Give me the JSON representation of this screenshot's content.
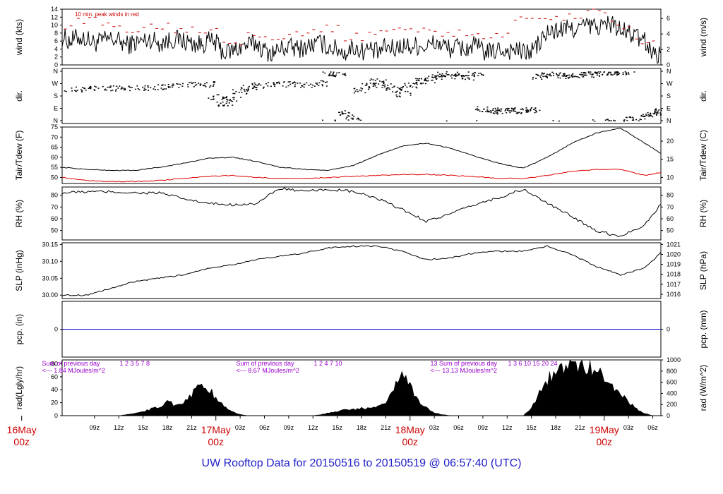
{
  "title": "UW Rooftop Data for 20150516  to  20150519 @ 06:57:40  (UTC)",
  "colors": {
    "series": "#000000",
    "peak": "#cc0000",
    "dewpoint": "#dd0000",
    "precip": "#0000cc",
    "day_label": "#cc0000",
    "notes": "#9900cc",
    "title": "#2222cc"
  },
  "time_axis": {
    "start_hour": 5,
    "end_hour": 79,
    "ticks": [
      {
        "hour": 9,
        "label": "09z"
      },
      {
        "hour": 12,
        "label": "12z"
      },
      {
        "hour": 15,
        "label": "15z"
      },
      {
        "hour": 18,
        "label": "18z"
      },
      {
        "hour": 21,
        "label": "21z"
      },
      {
        "hour": 27,
        "label": "03z"
      },
      {
        "hour": 30,
        "label": "06z"
      },
      {
        "hour": 33,
        "label": "09z"
      },
      {
        "hour": 36,
        "label": "12z"
      },
      {
        "hour": 39,
        "label": "15z"
      },
      {
        "hour": 42,
        "label": "18z"
      },
      {
        "hour": 45,
        "label": "21z"
      },
      {
        "hour": 51,
        "label": "03z"
      },
      {
        "hour": 54,
        "label": "06z"
      },
      {
        "hour": 57,
        "label": "09z"
      },
      {
        "hour": 60,
        "label": "12z"
      },
      {
        "hour": 63,
        "label": "15z"
      },
      {
        "hour": 66,
        "label": "18z"
      },
      {
        "hour": 69,
        "label": "21z"
      },
      {
        "hour": 75,
        "label": "03z"
      },
      {
        "hour": 78,
        "label": "06z"
      }
    ],
    "days": [
      {
        "hour": 0,
        "date": "16May",
        "z": "00z"
      },
      {
        "hour": 24,
        "date": "17May",
        "z": "00z"
      },
      {
        "hour": 48,
        "date": "18May",
        "z": "00z"
      },
      {
        "hour": 72,
        "date": "19May",
        "z": "00z"
      }
    ]
  },
  "chart_data": [
    {
      "id": "wind",
      "type": "line",
      "ylabel": "wind (kts)",
      "ylabel2": "wind (m/s)",
      "ylim": [
        0,
        14
      ],
      "yticks": [
        "0",
        "2",
        "4",
        "6",
        "8",
        "10",
        "12",
        "14"
      ],
      "yticks2": [
        "0",
        "2",
        "4",
        "6"
      ],
      "annotation": "10 min. peak winds in red",
      "series": [
        {
          "x": [
            5,
            6,
            7,
            8,
            9,
            10,
            11,
            12,
            13,
            14,
            15,
            16,
            17,
            18,
            19,
            20,
            21,
            22,
            23,
            24,
            25,
            26,
            27,
            28,
            29,
            30,
            31,
            32,
            33,
            34,
            35,
            36,
            37,
            38,
            39,
            40,
            41,
            42,
            43,
            44,
            45,
            46,
            47,
            48,
            49,
            50,
            51,
            52,
            53,
            54,
            55,
            56,
            57,
            58,
            59,
            60,
            61,
            62,
            63,
            64,
            65,
            66,
            67,
            68,
            69,
            70,
            71,
            72,
            73,
            74,
            75,
            76,
            77,
            78,
            79
          ],
          "values": [
            7,
            6,
            7,
            6.5,
            5.5,
            6,
            6.5,
            6,
            5,
            5.5,
            6,
            6.5,
            5.5,
            6,
            6.5,
            6,
            5.5,
            5,
            6,
            5.5,
            3,
            3.5,
            4.5,
            5,
            5.5,
            3.5,
            3,
            4,
            4.5,
            4,
            4.5,
            5,
            5.5,
            4.5,
            4,
            3,
            4.5,
            3.5,
            4,
            3,
            4.5,
            4,
            5,
            4.5,
            5,
            4.5,
            5.5,
            5,
            4,
            4.5,
            4,
            5,
            3.5,
            3,
            4,
            3.5,
            4,
            3,
            3.5,
            5.5,
            8,
            8.5,
            9,
            9,
            9.5,
            10,
            9.5,
            10,
            10.5,
            8.5,
            8,
            7,
            6,
            3,
            2.5
          ]
        },
        {
          "name": "10 min. peak winds in red",
          "x": [
            5,
            8,
            11,
            14,
            17,
            20,
            23,
            26,
            29,
            32,
            35,
            38,
            41,
            44,
            47,
            50,
            53,
            56,
            59,
            62,
            65,
            68,
            71,
            74,
            77
          ],
          "values": [
            10,
            11,
            10,
            9,
            10,
            9,
            9,
            6,
            8,
            7,
            8,
            9,
            7,
            8,
            9,
            9,
            8,
            7,
            7,
            12,
            12,
            12,
            14,
            10,
            6
          ]
        }
      ]
    },
    {
      "id": "dir",
      "type": "scatter",
      "ylabel": "dir.",
      "ylabel2": "dir.",
      "ylim": [
        0,
        360
      ],
      "yticks": [
        "N",
        "W",
        "S",
        "E",
        "N"
      ],
      "yticks2": [
        "N",
        "W",
        "S",
        "E",
        "N"
      ],
      "series": [
        {
          "x": [
            5,
            7,
            9,
            11,
            13,
            15,
            17,
            19,
            21,
            23,
            24,
            25,
            26,
            27,
            28,
            29,
            31,
            33,
            35,
            37,
            38,
            39,
            40,
            41,
            42,
            43,
            44,
            45,
            46,
            47,
            48,
            49,
            50,
            51,
            52,
            53,
            54,
            55,
            56,
            57,
            58,
            59,
            60,
            61,
            62,
            63,
            64,
            65,
            66,
            67,
            68,
            69,
            70,
            71,
            72,
            73,
            74,
            75,
            76,
            77,
            78,
            79
          ],
          "values": [
            218,
            230,
            238,
            240,
            236,
            242,
            250,
            262,
            270,
            268,
            175,
            126,
            160,
            215,
            248,
            260,
            272,
            268,
            264,
            275,
            350,
            340,
            60,
            22,
            225,
            262,
            288,
            255,
            232,
            198,
            262,
            292,
            295,
            318,
            342,
            345,
            325,
            320,
            345,
            85,
            72,
            76,
            80,
            75,
            78,
            80,
            322,
            335,
            345,
            330,
            328,
            340,
            350,
            340,
            352,
            355,
            358,
            12,
            22,
            45,
            60,
            72
          ]
        }
      ]
    },
    {
      "id": "temp",
      "type": "line",
      "ylabel": "Tair/Tdew (F)",
      "ylabel2": "Tair/Tdew (C)",
      "ylim": [
        47,
        75
      ],
      "yticks": [
        "50",
        "55",
        "60",
        "65",
        "70",
        "75"
      ],
      "yticks2": [
        "10",
        "15",
        "20"
      ],
      "series": [
        {
          "name": "Tair",
          "x": [
            5,
            8,
            11,
            14,
            17,
            20,
            23,
            26,
            29,
            32,
            35,
            38,
            41,
            44,
            47,
            50,
            53,
            56,
            59,
            62,
            65,
            68,
            71,
            74,
            77,
            79
          ],
          "values": [
            55,
            54,
            53.5,
            53.5,
            55,
            57,
            59.5,
            60,
            58,
            55,
            54,
            53.5,
            56,
            61,
            65.5,
            67,
            64.5,
            60.5,
            57,
            54.5,
            60,
            67,
            72,
            74.5,
            67,
            62
          ]
        },
        {
          "name": "Tdew",
          "x": [
            5,
            8,
            11,
            14,
            17,
            20,
            23,
            26,
            29,
            32,
            35,
            38,
            41,
            44,
            47,
            50,
            53,
            56,
            59,
            62,
            65,
            68,
            71,
            74,
            77,
            79
          ],
          "values": [
            50,
            48.5,
            48,
            48,
            48.5,
            49.5,
            50.5,
            51,
            50,
            49.5,
            49.5,
            50,
            50.5,
            51,
            51.5,
            51.5,
            51,
            50.5,
            49.5,
            49.5,
            51,
            53,
            54,
            54,
            51,
            52.5
          ]
        }
      ]
    },
    {
      "id": "rh",
      "type": "line",
      "ylabel": "RH (%)",
      "ylabel2": "RH (%)",
      "ylim": [
        42,
        87
      ],
      "yticks": [
        "50",
        "60",
        "70",
        "80"
      ],
      "yticks2": [
        "50",
        "60",
        "70",
        "80"
      ],
      "series": [
        {
          "x": [
            5,
            8,
            11,
            14,
            17,
            20,
            23,
            26,
            29,
            32,
            35,
            38,
            41,
            44,
            47,
            50,
            53,
            56,
            59,
            62,
            65,
            68,
            71,
            74,
            77,
            79
          ],
          "values": [
            82,
            83,
            83,
            82,
            82,
            77,
            73,
            72,
            73,
            86,
            83,
            85,
            83,
            77,
            68,
            58,
            64,
            72,
            78,
            85,
            73,
            62,
            50,
            45,
            55,
            72
          ]
        }
      ]
    },
    {
      "id": "slp",
      "type": "line",
      "ylabel": "SLP (inHg)",
      "ylabel2": "SLP (hPa)",
      "ylim": [
        29.99,
        30.155
      ],
      "yticks": [
        "30.00",
        "30.05",
        "30.10",
        "30.15"
      ],
      "yticks2": [
        "1016",
        "1017",
        "1018",
        "1019",
        "1020",
        "1021"
      ],
      "series": [
        {
          "x": [
            5,
            8,
            11,
            14,
            17,
            20,
            23,
            26,
            29,
            32,
            35,
            38,
            41,
            44,
            47,
            50,
            53,
            56,
            59,
            62,
            65,
            68,
            71,
            74,
            77,
            79
          ],
          "values": [
            30.0,
            30.0,
            30.02,
            30.04,
            30.05,
            30.06,
            30.08,
            30.09,
            30.105,
            30.115,
            30.125,
            30.14,
            30.145,
            30.145,
            30.13,
            30.105,
            30.11,
            30.125,
            30.13,
            30.13,
            30.145,
            30.12,
            30.085,
            30.06,
            30.08,
            30.125
          ]
        }
      ]
    },
    {
      "id": "pcp",
      "type": "line",
      "ylabel": "pcp. (in)",
      "ylabel2": "pcp. (mm)",
      "ylim": [
        -1,
        1
      ],
      "yticks": [
        "0"
      ],
      "yticks2": [
        "0"
      ],
      "series": [
        {
          "x": [
            5,
            79
          ],
          "values": [
            0,
            0
          ]
        }
      ]
    },
    {
      "id": "rad",
      "type": "area",
      "ylabel": "rad(Lgly/hr)",
      "ylabel2": "rad (W/m^2)",
      "ylim": [
        0,
        1000
      ],
      "yticks": [
        "0",
        "20",
        "40",
        "60",
        "80"
      ],
      "yticks2": [
        "0",
        "200",
        "400",
        "600",
        "800",
        "1000"
      ],
      "series": [
        {
          "x": [
            5,
            9,
            12,
            13,
            14,
            15,
            16,
            17,
            18,
            19,
            20,
            21,
            22,
            23,
            24,
            25,
            26,
            27,
            28,
            29,
            30,
            31,
            32,
            33,
            34,
            35,
            36,
            37,
            38,
            39,
            40,
            41,
            42,
            43,
            44,
            45,
            46,
            47,
            48,
            49,
            50,
            51,
            52,
            53,
            54,
            55,
            56,
            57,
            58,
            59,
            60,
            61,
            62,
            63,
            64,
            65,
            66,
            67,
            68,
            69,
            70,
            71,
            72,
            73,
            74,
            75,
            76,
            77,
            78,
            79
          ],
          "values": [
            0,
            0,
            0,
            20,
            40,
            80,
            120,
            150,
            260,
            190,
            250,
            380,
            560,
            500,
            320,
            160,
            80,
            20,
            0,
            0,
            0,
            0,
            0,
            0,
            0,
            0,
            0,
            20,
            50,
            80,
            100,
            110,
            130,
            140,
            180,
            260,
            440,
            900,
            520,
            280,
            140,
            50,
            20,
            0,
            0,
            0,
            0,
            0,
            0,
            0,
            0,
            0,
            0,
            150,
            400,
            650,
            780,
            850,
            890,
            890,
            860,
            800,
            700,
            560,
            400,
            250,
            120,
            40,
            0,
            0
          ]
        }
      ]
    }
  ],
  "rad_notes": [
    {
      "hour": 6,
      "line1": "Sum of previous day",
      "line2": "<--- 1.84 MJoules/m^2",
      "hours": "1    2     3    5  7    8"
    },
    {
      "hour": 30,
      "line1": "Sum of previous day",
      "line2": "<--- 8.67 MJoules/m^2",
      "hours": "1      2    4   7  10"
    },
    {
      "hour": 54,
      "line1": "13 Sum of previous day",
      "line2": "<--- 13.13 MJoules/m^2",
      "hours": "1   3   6   10  15   20   24"
    }
  ]
}
